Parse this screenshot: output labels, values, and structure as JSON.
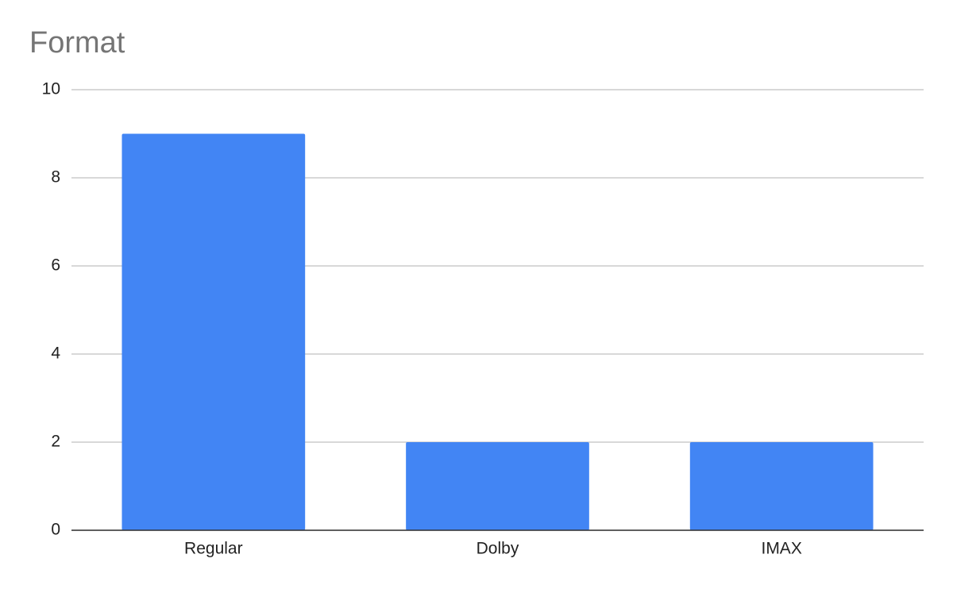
{
  "chart_data": {
    "type": "bar",
    "title": "Format",
    "categories": [
      "Regular",
      "Dolby",
      "IMAX"
    ],
    "values": [
      9,
      2,
      2
    ],
    "color": "#4285f4",
    "ylim": [
      0,
      10
    ],
    "yticks": [
      0,
      2,
      4,
      6,
      8,
      10
    ],
    "grid": true
  }
}
